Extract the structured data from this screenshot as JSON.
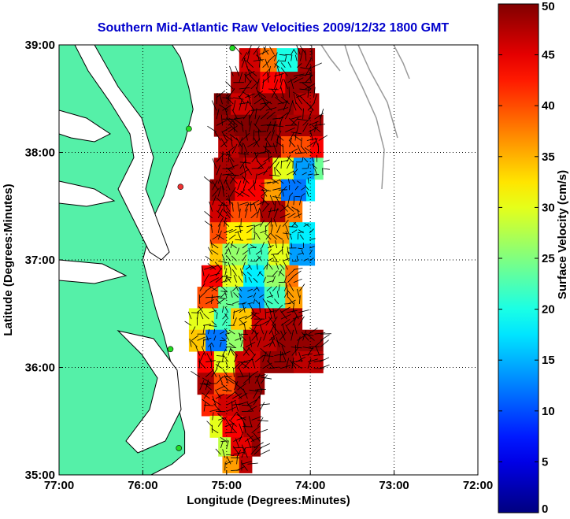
{
  "chart_data": {
    "type": "heatmap",
    "title": "Southern Mid-Atlantic Raw Velocities 2009/12/32 1800 GMT",
    "xlabel": "Longitude (Degrees:Minutes)",
    "ylabel": "Latitude (Degrees:Minutes)",
    "xlim": [
      -77,
      -72
    ],
    "ylim": [
      35,
      39
    ],
    "x_ticks": [
      {
        "v": -77,
        "label": "77:00"
      },
      {
        "v": -76,
        "label": "76:00"
      },
      {
        "v": -75,
        "label": "75:00"
      },
      {
        "v": -74,
        "label": "74:00"
      },
      {
        "v": -73,
        "label": "73:00"
      },
      {
        "v": -72,
        "label": "72:00"
      }
    ],
    "y_ticks": [
      {
        "v": 35,
        "label": "35:00"
      },
      {
        "v": 36,
        "label": "36:00"
      },
      {
        "v": 37,
        "label": "37:00"
      },
      {
        "v": 38,
        "label": "38:00"
      },
      {
        "v": 39,
        "label": "39:00"
      }
    ],
    "grid": "dotted",
    "colorbar": {
      "label": "Surface Velocity (cm/s)",
      "range": [
        0,
        50
      ],
      "ticks": [
        {
          "v": 0,
          "label": "0"
        },
        {
          "v": 5,
          "label": "5"
        },
        {
          "v": 10,
          "label": "10"
        },
        {
          "v": 15,
          "label": "15"
        },
        {
          "v": 20,
          "label": "20"
        },
        {
          "v": 25,
          "label": "25"
        },
        {
          "v": 30,
          "label": "30"
        },
        {
          "v": 35,
          "label": "35"
        },
        {
          "v": 40,
          "label": "40"
        },
        {
          "v": 45,
          "label": "45"
        },
        {
          "v": 50,
          "label": "50"
        }
      ],
      "colormap": "jet",
      "placement": "right"
    },
    "field_rows": [
      {
        "lat": 38.85,
        "cells": [
          [
            -74.85,
            -74.6,
            46
          ],
          [
            -74.6,
            -74.4,
            38
          ],
          [
            -74.4,
            -74.15,
            20
          ],
          [
            -74.15,
            -73.95,
            48
          ]
        ]
      },
      {
        "lat": 38.65,
        "cells": [
          [
            -74.95,
            -74.6,
            48
          ],
          [
            -74.6,
            -74.3,
            44
          ],
          [
            -74.3,
            -73.95,
            49
          ]
        ]
      },
      {
        "lat": 38.45,
        "cells": [
          [
            -75.15,
            -74.95,
            50
          ],
          [
            -74.95,
            -74.7,
            46
          ],
          [
            -74.7,
            -74.2,
            49
          ],
          [
            -74.2,
            -73.9,
            47
          ]
        ]
      },
      {
        "lat": 38.25,
        "cells": [
          [
            -75.15,
            -74.9,
            49
          ],
          [
            -74.9,
            -74.4,
            50
          ],
          [
            -74.4,
            -73.85,
            48
          ]
        ]
      },
      {
        "lat": 38.05,
        "cells": [
          [
            -75.1,
            -74.85,
            47
          ],
          [
            -74.85,
            -74.35,
            49
          ],
          [
            -74.35,
            -74.0,
            40
          ],
          [
            -74.0,
            -73.85,
            44
          ]
        ]
      },
      {
        "lat": 37.85,
        "cells": [
          [
            -75.15,
            -74.8,
            48
          ],
          [
            -74.8,
            -74.45,
            46
          ],
          [
            -74.45,
            -74.2,
            30
          ],
          [
            -74.2,
            -73.95,
            14
          ],
          [
            -73.95,
            -73.85,
            24
          ]
        ]
      },
      {
        "lat": 37.65,
        "cells": [
          [
            -75.2,
            -74.9,
            49
          ],
          [
            -74.9,
            -74.55,
            44
          ],
          [
            -74.55,
            -74.35,
            36
          ],
          [
            -74.35,
            -74.05,
            12
          ],
          [
            -74.05,
            -73.95,
            18
          ]
        ]
      },
      {
        "lat": 37.45,
        "cells": [
          [
            -75.2,
            -74.95,
            46
          ],
          [
            -74.95,
            -74.6,
            40
          ],
          [
            -74.6,
            -74.3,
            48
          ],
          [
            -74.3,
            -74.1,
            38
          ]
        ]
      },
      {
        "lat": 37.25,
        "cells": [
          [
            -75.2,
            -75.0,
            40
          ],
          [
            -75.0,
            -74.7,
            32
          ],
          [
            -74.7,
            -74.5,
            28
          ],
          [
            -74.5,
            -74.25,
            36
          ],
          [
            -74.25,
            -73.95,
            18
          ]
        ]
      },
      {
        "lat": 37.05,
        "cells": [
          [
            -75.2,
            -75.05,
            34
          ],
          [
            -75.05,
            -74.75,
            26
          ],
          [
            -74.75,
            -74.5,
            22
          ],
          [
            -74.5,
            -74.25,
            30
          ],
          [
            -74.25,
            -73.95,
            14
          ]
        ]
      },
      {
        "lat": 36.85,
        "cells": [
          [
            -75.3,
            -75.05,
            44
          ],
          [
            -75.05,
            -74.8,
            30
          ],
          [
            -74.8,
            -74.55,
            18
          ],
          [
            -74.55,
            -74.3,
            26
          ],
          [
            -74.3,
            -74.15,
            38
          ]
        ]
      },
      {
        "lat": 36.65,
        "cells": [
          [
            -75.35,
            -75.1,
            40
          ],
          [
            -75.1,
            -74.85,
            24
          ],
          [
            -74.85,
            -74.55,
            14
          ],
          [
            -74.55,
            -74.3,
            22
          ],
          [
            -74.3,
            -74.1,
            36
          ]
        ]
      },
      {
        "lat": 36.45,
        "cells": [
          [
            -75.45,
            -75.15,
            30
          ],
          [
            -75.15,
            -74.95,
            22
          ],
          [
            -74.95,
            -74.7,
            34
          ],
          [
            -74.7,
            -74.45,
            46
          ],
          [
            -74.45,
            -74.1,
            48
          ]
        ]
      },
      {
        "lat": 36.25,
        "cells": [
          [
            -75.45,
            -75.25,
            34
          ],
          [
            -75.25,
            -75.0,
            12
          ],
          [
            -75.0,
            -74.8,
            26
          ],
          [
            -74.8,
            -74.4,
            47
          ],
          [
            -74.4,
            -73.85,
            49
          ]
        ]
      },
      {
        "lat": 36.05,
        "cells": [
          [
            -75.35,
            -75.15,
            44
          ],
          [
            -75.15,
            -74.9,
            30
          ],
          [
            -74.9,
            -74.6,
            46
          ],
          [
            -74.6,
            -74.2,
            49
          ],
          [
            -74.2,
            -73.85,
            47
          ]
        ]
      },
      {
        "lat": 35.85,
        "cells": [
          [
            -75.35,
            -75.15,
            48
          ],
          [
            -75.15,
            -74.9,
            40
          ],
          [
            -74.9,
            -74.55,
            49
          ]
        ]
      },
      {
        "lat": 35.65,
        "cells": [
          [
            -75.3,
            -75.1,
            42
          ],
          [
            -75.1,
            -74.85,
            46
          ],
          [
            -74.85,
            -74.6,
            48
          ]
        ]
      },
      {
        "lat": 35.45,
        "cells": [
          [
            -75.2,
            -75.05,
            30
          ],
          [
            -75.05,
            -74.8,
            44
          ],
          [
            -74.8,
            -74.6,
            48
          ]
        ]
      },
      {
        "lat": 35.25,
        "cells": [
          [
            -75.1,
            -74.95,
            28
          ],
          [
            -74.95,
            -74.7,
            45
          ],
          [
            -74.7,
            -74.6,
            49
          ]
        ]
      },
      {
        "lat": 35.1,
        "cells": [
          [
            -75.05,
            -74.85,
            36
          ],
          [
            -74.85,
            -74.7,
            47
          ]
        ]
      }
    ],
    "land": {
      "color": "#55f0a8",
      "coastline": [
        [
          -77.0,
          39.0
        ],
        [
          -75.65,
          39.0
        ],
        [
          -75.55,
          38.88
        ],
        [
          -75.45,
          38.6
        ],
        [
          -75.4,
          38.4
        ],
        [
          -75.5,
          38.1
        ],
        [
          -75.65,
          37.85
        ],
        [
          -75.75,
          37.6
        ],
        [
          -75.9,
          37.35
        ],
        [
          -75.95,
          37.15
        ],
        [
          -76.0,
          37.0
        ],
        [
          -75.95,
          36.85
        ],
        [
          -75.85,
          36.55
        ],
        [
          -75.75,
          36.3
        ],
        [
          -75.65,
          36.0
        ],
        [
          -75.6,
          35.7
        ],
        [
          -75.5,
          35.4
        ],
        [
          -75.5,
          35.2
        ],
        [
          -75.65,
          35.1
        ],
        [
          -75.9,
          35.0
        ],
        [
          -77.0,
          35.0
        ]
      ]
    },
    "stations": [
      {
        "lon": -74.93,
        "lat": 38.97,
        "color": "#22dd22"
      },
      {
        "lon": -75.45,
        "lat": 38.22,
        "color": "#22dd22"
      },
      {
        "lon": -75.55,
        "lat": 37.68,
        "color": "#ee3333"
      },
      {
        "lon": -75.67,
        "lat": 36.17,
        "color": "#22dd22"
      },
      {
        "lon": -75.57,
        "lat": 35.25,
        "color": "#22dd22"
      }
    ]
  }
}
